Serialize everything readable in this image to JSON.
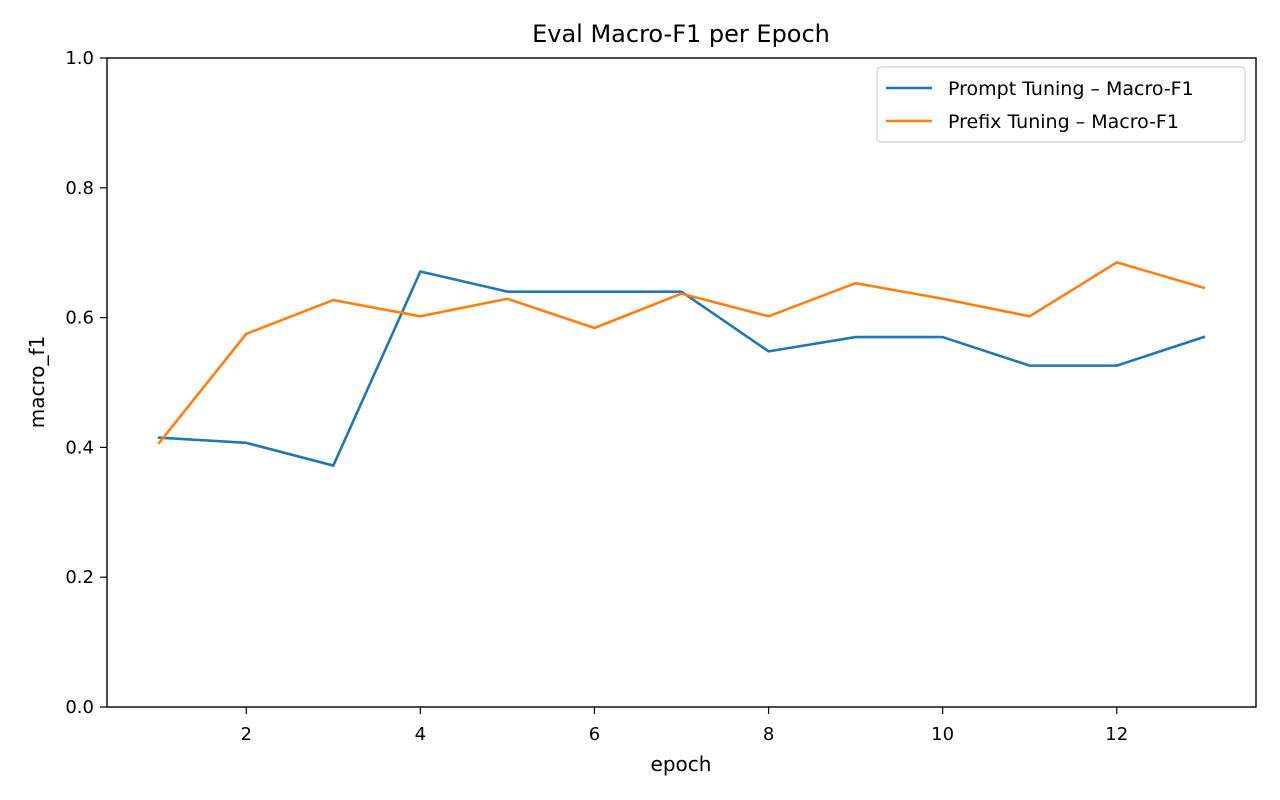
{
  "chart_data": {
    "type": "line",
    "title": "Eval Macro-F1 per Epoch",
    "xlabel": "epoch",
    "ylabel": "macro_f1",
    "x": [
      1,
      2,
      3,
      4,
      5,
      6,
      7,
      8,
      9,
      10,
      11,
      12,
      13
    ],
    "xlim": [
      0.4,
      13.6
    ],
    "ylim": [
      0.0,
      1.0
    ],
    "xticks": [
      2,
      4,
      6,
      8,
      10,
      12
    ],
    "yticks": [
      0.0,
      0.2,
      0.4,
      0.6,
      0.8,
      1.0
    ],
    "xtick_labels": [
      "2",
      "4",
      "6",
      "8",
      "10",
      "12"
    ],
    "ytick_labels": [
      "0.0",
      "0.2",
      "0.4",
      "0.6",
      "0.8",
      "1.0"
    ],
    "grid": false,
    "legend_position": "top-right",
    "series": [
      {
        "name": "Prompt Tuning – Macro-F1",
        "color": "#1f77b4",
        "values": [
          0.415,
          0.407,
          0.372,
          0.671,
          0.64,
          0.64,
          0.64,
          0.548,
          0.57,
          0.57,
          0.526,
          0.526,
          0.57
        ]
      },
      {
        "name": "Prefix Tuning – Macro-F1",
        "color": "#ff7f0e",
        "values": [
          0.407,
          0.575,
          0.627,
          0.602,
          0.629,
          0.584,
          0.637,
          0.602,
          0.653,
          0.629,
          0.602,
          0.685,
          0.646
        ]
      }
    ]
  }
}
